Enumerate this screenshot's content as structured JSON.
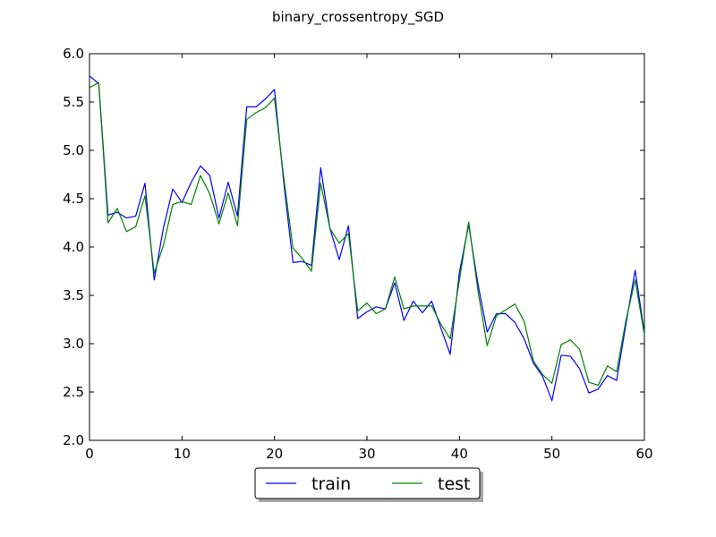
{
  "chart_data": {
    "type": "line",
    "title": "binary_crossentropy_SGD",
    "xlabel": "",
    "ylabel": "",
    "xlim": [
      0,
      60
    ],
    "ylim": [
      2.0,
      6.0
    ],
    "x_ticks": [
      "0",
      "10",
      "20",
      "30",
      "40",
      "50",
      "60"
    ],
    "y_ticks": [
      "2.0",
      "2.5",
      "3.0",
      "3.5",
      "4.0",
      "4.5",
      "5.0",
      "5.5",
      "6.0"
    ],
    "grid": false,
    "legend_position": "bottom-center",
    "x": [
      0,
      1,
      2,
      3,
      4,
      5,
      6,
      7,
      8,
      9,
      10,
      11,
      12,
      13,
      14,
      15,
      16,
      17,
      18,
      19,
      20,
      21,
      22,
      23,
      24,
      25,
      26,
      27,
      28,
      29,
      30,
      31,
      32,
      33,
      34,
      35,
      36,
      37,
      38,
      39,
      40,
      41,
      42,
      43,
      44,
      45,
      46,
      47,
      48,
      49,
      50,
      51,
      52,
      53,
      54,
      55,
      56,
      57,
      58,
      59,
      60
    ],
    "series": [
      {
        "name": "train",
        "color": "#0000ff",
        "values": [
          5.77,
          5.69,
          4.33,
          4.36,
          4.3,
          4.32,
          4.66,
          3.66,
          4.2,
          4.6,
          4.46,
          4.67,
          4.84,
          4.74,
          4.3,
          4.67,
          4.32,
          5.45,
          5.45,
          5.53,
          5.63,
          4.67,
          3.84,
          3.85,
          3.81,
          4.82,
          4.19,
          3.87,
          4.22,
          3.26,
          3.33,
          3.38,
          3.36,
          3.63,
          3.24,
          3.44,
          3.32,
          3.44,
          3.16,
          2.89,
          3.74,
          4.23,
          3.62,
          3.12,
          3.31,
          3.31,
          3.22,
          3.05,
          2.8,
          2.66,
          2.41,
          2.88,
          2.87,
          2.74,
          2.49,
          2.53,
          2.67,
          2.62,
          3.2,
          3.76,
          3.11
        ]
      },
      {
        "name": "test",
        "color": "#008000",
        "values": [
          5.65,
          5.7,
          4.25,
          4.4,
          4.16,
          4.21,
          4.53,
          3.73,
          4.02,
          4.44,
          4.47,
          4.44,
          4.74,
          4.55,
          4.24,
          4.56,
          4.22,
          5.32,
          5.39,
          5.44,
          5.54,
          4.72,
          3.99,
          3.88,
          3.75,
          4.66,
          4.19,
          4.04,
          4.14,
          3.34,
          3.42,
          3.31,
          3.36,
          3.69,
          3.36,
          3.39,
          3.39,
          3.39,
          3.2,
          3.05,
          3.66,
          4.26,
          3.55,
          2.98,
          3.29,
          3.35,
          3.41,
          3.23,
          2.82,
          2.68,
          2.59,
          2.99,
          3.04,
          2.94,
          2.6,
          2.57,
          2.77,
          2.71,
          3.24,
          3.66,
          3.09
        ]
      }
    ]
  }
}
